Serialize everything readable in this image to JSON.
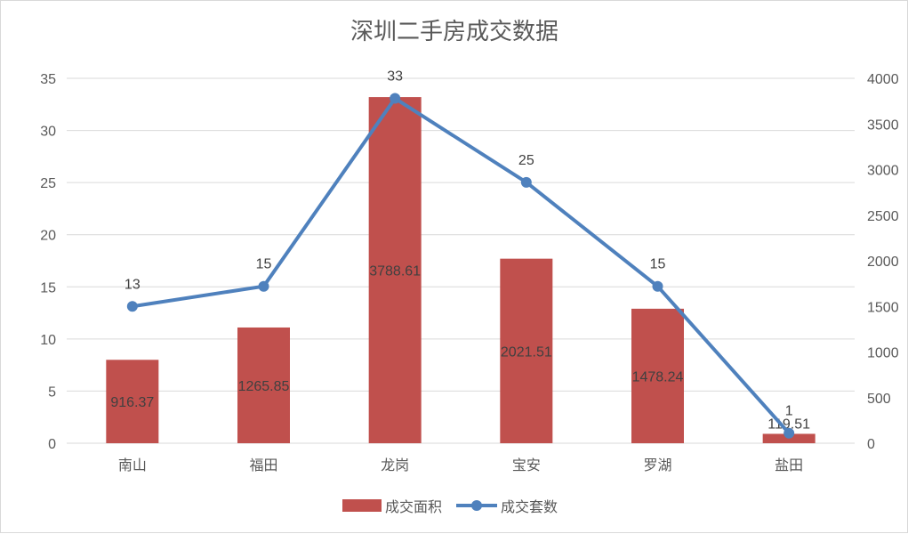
{
  "chart_data": {
    "type": "bar",
    "title": "深圳二手房成交数据",
    "categories": [
      "南山",
      "福田",
      "龙岗",
      "宝安",
      "罗湖",
      "盐田"
    ],
    "series": [
      {
        "name": "成交面积",
        "type": "bar",
        "axis": "left",
        "values": [
          8,
          11.1,
          33.2,
          17.7,
          12.9,
          0.9
        ],
        "labels": [
          "916.37",
          "1265.85",
          "3788.61",
          "2021.51",
          "1478.24",
          "119.51"
        ],
        "color": "#c0504d"
      },
      {
        "name": "成交套数",
        "type": "line",
        "axis": "right",
        "values": [
          1500,
          1720,
          3780,
          2860,
          1720,
          110
        ],
        "labels": [
          "13",
          "15",
          "33",
          "25",
          "15",
          "1"
        ],
        "color": "#4f81bd"
      }
    ],
    "y_left": {
      "min": 0,
      "max": 35,
      "ticks": [
        "0",
        "5",
        "10",
        "15",
        "20",
        "25",
        "30",
        "35"
      ]
    },
    "y_right": {
      "min": 0,
      "max": 4000,
      "ticks": [
        "0",
        "500",
        "1000",
        "1500",
        "2000",
        "2500",
        "3000",
        "3500",
        "4000"
      ]
    },
    "grid": true,
    "legend": "bottom"
  }
}
